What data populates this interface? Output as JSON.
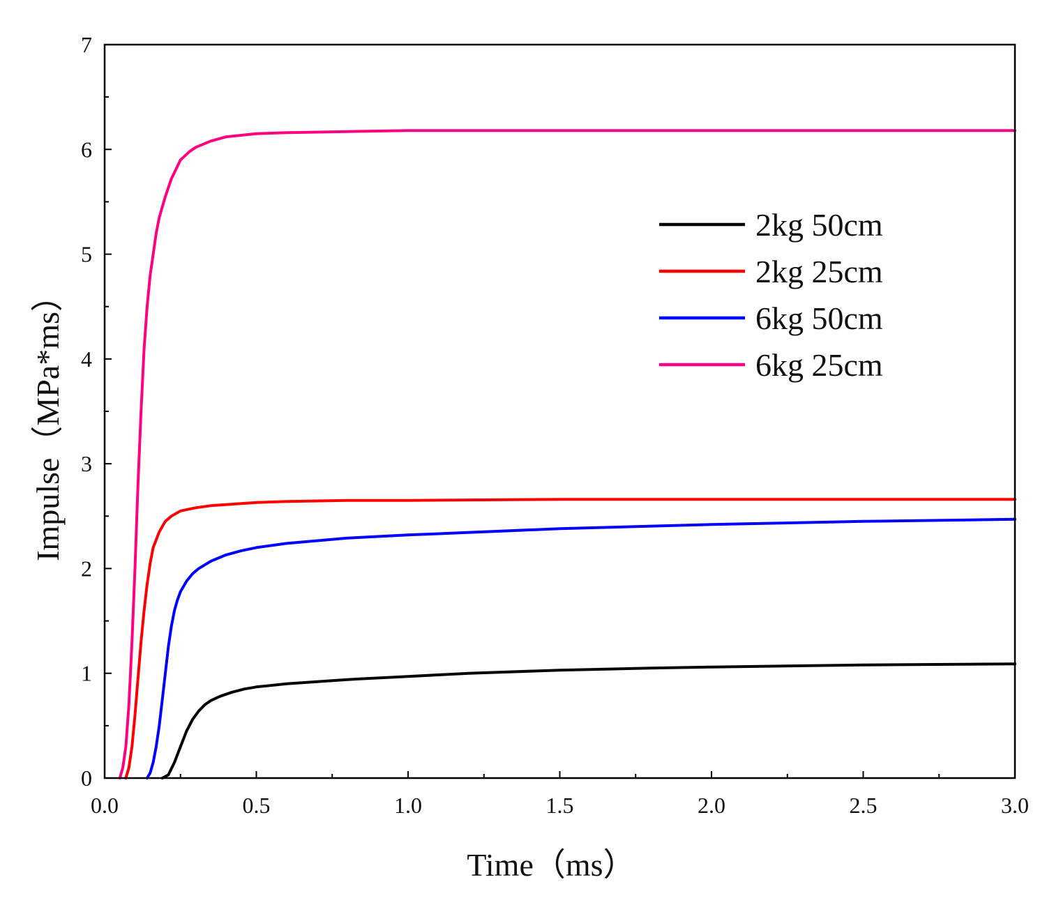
{
  "chart_data": {
    "type": "line",
    "title": "",
    "xlabel": "Time（ms）",
    "ylabel": "Impulse（MPa*ms）",
    "xlim": [
      0,
      3
    ],
    "ylim": [
      0,
      7
    ],
    "xticks": [
      "0.0",
      "0.5",
      "1.0",
      "1.5",
      "2.0",
      "2.5",
      "3.0"
    ],
    "xtick_values": [
      0,
      0.5,
      1.0,
      1.5,
      2.0,
      2.5,
      3.0
    ],
    "yticks": [
      "0",
      "1",
      "2",
      "3",
      "4",
      "5",
      "6",
      "7"
    ],
    "ytick_values": [
      0,
      1,
      2,
      3,
      4,
      5,
      6,
      7
    ],
    "grid": false,
    "legend_position": "upper-right",
    "series": [
      {
        "name": "2kg 50cm",
        "color": "#000000",
        "x": [
          0.19,
          0.21,
          0.23,
          0.25,
          0.27,
          0.29,
          0.31,
          0.33,
          0.35,
          0.38,
          0.42,
          0.46,
          0.5,
          0.6,
          0.7,
          0.8,
          1.0,
          1.2,
          1.5,
          1.8,
          2.0,
          2.5,
          3.0
        ],
        "values": [
          0.0,
          0.03,
          0.15,
          0.3,
          0.45,
          0.56,
          0.64,
          0.7,
          0.74,
          0.78,
          0.82,
          0.85,
          0.87,
          0.9,
          0.92,
          0.94,
          0.97,
          1.0,
          1.03,
          1.05,
          1.06,
          1.08,
          1.09
        ]
      },
      {
        "name": "2kg 25cm",
        "color": "#ff0000",
        "x": [
          0.07,
          0.08,
          0.09,
          0.1,
          0.11,
          0.12,
          0.13,
          0.14,
          0.15,
          0.16,
          0.18,
          0.2,
          0.22,
          0.25,
          0.3,
          0.35,
          0.4,
          0.5,
          0.6,
          0.8,
          1.0,
          1.5,
          2.0,
          3.0
        ],
        "values": [
          0.0,
          0.1,
          0.3,
          0.6,
          0.95,
          1.3,
          1.6,
          1.85,
          2.05,
          2.2,
          2.35,
          2.45,
          2.5,
          2.55,
          2.58,
          2.6,
          2.61,
          2.63,
          2.64,
          2.65,
          2.65,
          2.66,
          2.66,
          2.66
        ]
      },
      {
        "name": "6kg 50cm",
        "color": "#0000ff",
        "x": [
          0.14,
          0.15,
          0.16,
          0.17,
          0.18,
          0.19,
          0.2,
          0.21,
          0.22,
          0.23,
          0.24,
          0.25,
          0.27,
          0.29,
          0.31,
          0.35,
          0.4,
          0.45,
          0.5,
          0.6,
          0.8,
          1.0,
          1.5,
          2.0,
          2.5,
          3.0
        ],
        "values": [
          0.0,
          0.05,
          0.15,
          0.3,
          0.5,
          0.75,
          1.0,
          1.25,
          1.45,
          1.6,
          1.7,
          1.78,
          1.88,
          1.95,
          2.0,
          2.07,
          2.13,
          2.17,
          2.2,
          2.24,
          2.29,
          2.32,
          2.38,
          2.42,
          2.45,
          2.47
        ]
      },
      {
        "name": "6kg 25cm",
        "color": "#ff0080",
        "x": [
          0.05,
          0.06,
          0.07,
          0.08,
          0.09,
          0.1,
          0.11,
          0.12,
          0.13,
          0.14,
          0.15,
          0.16,
          0.17,
          0.18,
          0.2,
          0.22,
          0.25,
          0.28,
          0.3,
          0.35,
          0.4,
          0.5,
          0.6,
          0.8,
          1.0,
          1.5,
          2.0,
          3.0
        ],
        "values": [
          0.0,
          0.1,
          0.3,
          0.7,
          1.3,
          2.0,
          2.8,
          3.5,
          4.1,
          4.5,
          4.8,
          5.0,
          5.2,
          5.35,
          5.55,
          5.72,
          5.9,
          5.98,
          6.02,
          6.08,
          6.12,
          6.15,
          6.16,
          6.17,
          6.18,
          6.18,
          6.18,
          6.18
        ]
      }
    ]
  }
}
